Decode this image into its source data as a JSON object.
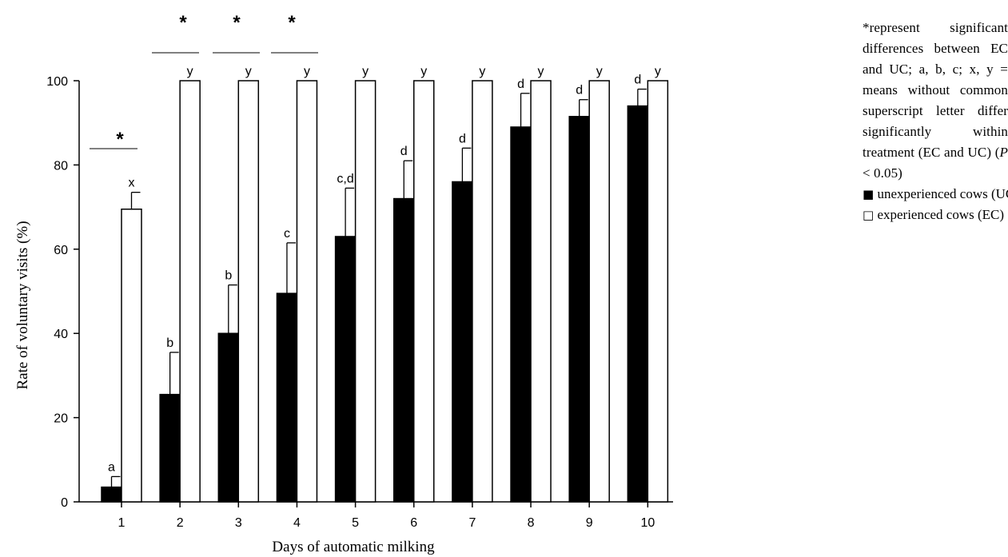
{
  "chart_data": {
    "type": "bar",
    "xlabel": "Days of automatic milking",
    "ylabel": "Rate of voluntary visits (%)",
    "ylim": [
      0,
      100
    ],
    "yticks": [
      0,
      20,
      40,
      60,
      80,
      100
    ],
    "categories": [
      "1",
      "2",
      "3",
      "4",
      "5",
      "6",
      "7",
      "8",
      "9",
      "10"
    ],
    "series": [
      {
        "name": "unexperienced cows (UC)",
        "color": "#000000",
        "values": [
          3.5,
          25.5,
          40,
          49.5,
          63,
          72,
          76,
          89,
          91.5,
          94
        ],
        "errors": [
          2.5,
          10,
          11.5,
          12,
          11.5,
          9,
          8,
          8,
          4,
          4
        ],
        "labels": [
          "a",
          "b",
          "b",
          "c",
          "c,d",
          "d",
          "d",
          "d",
          "d",
          "d"
        ]
      },
      {
        "name": "experienced cows (EC)",
        "color": "#ffffff",
        "values": [
          69.5,
          100,
          100,
          100,
          100,
          100,
          100,
          100,
          100,
          100
        ],
        "errors": [
          4,
          0,
          0,
          0,
          0,
          0,
          0,
          0,
          0,
          0
        ],
        "labels": [
          "x",
          "y",
          "y",
          "y",
          "y",
          "y",
          "y",
          "y",
          "y",
          "y"
        ]
      }
    ],
    "significance": [
      "*",
      "*",
      "*",
      "*"
    ],
    "significant_days": [
      "1",
      "2",
      "3",
      "4"
    ],
    "legend_placement": "right",
    "grid": false
  },
  "legend": {
    "note": "*represent significant differences between EC and UC; a, b, c; x, y = means without common superscript letter differ significantly within treatment (EC and UC) (",
    "note_p": "P",
    "note_end": " < 0.05)",
    "uc_symbol": "■",
    "uc_label": "unexperienced cows (UC)",
    "ec_symbol": "□",
    "ec_label": "experienced cows (EC)"
  }
}
